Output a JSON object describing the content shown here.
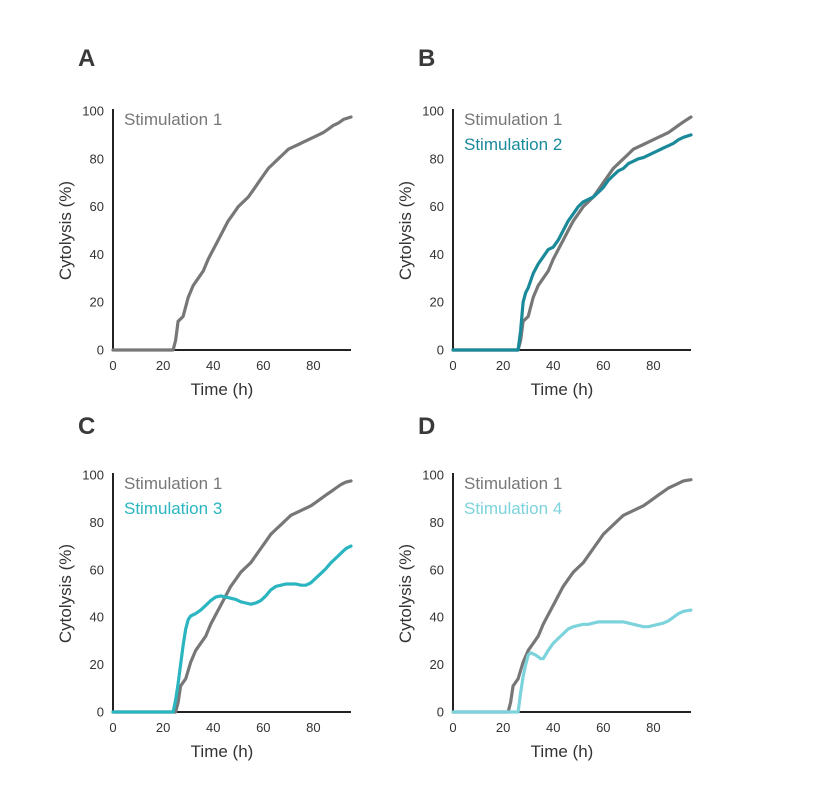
{
  "chart_data": [
    {
      "panel": "A",
      "type": "line",
      "title": "",
      "xlabel": "Time (h)",
      "ylabel": "Cytolysis (%)",
      "xlim": [
        0,
        95
      ],
      "ylim": [
        0,
        100
      ],
      "xticks": [
        0,
        20,
        40,
        60,
        80
      ],
      "yticks": [
        0,
        20,
        40,
        60,
        80,
        100
      ],
      "series": [
        {
          "name": "Stimulation 1",
          "color": "#777777",
          "points": [
            [
              0,
              0
            ],
            [
              24,
              0
            ],
            [
              25,
              4
            ],
            [
              26,
              12
            ],
            [
              28,
              14
            ],
            [
              30,
              22
            ],
            [
              32,
              27
            ],
            [
              34,
              30
            ],
            [
              36,
              33
            ],
            [
              38,
              38
            ],
            [
              40,
              42
            ],
            [
              42,
              46
            ],
            [
              44,
              50
            ],
            [
              46,
              54
            ],
            [
              48,
              57
            ],
            [
              50,
              60
            ],
            [
              52,
              62
            ],
            [
              54,
              64
            ],
            [
              56,
              67
            ],
            [
              58,
              70
            ],
            [
              60,
              73
            ],
            [
              62,
              76
            ],
            [
              64,
              78
            ],
            [
              66,
              80
            ],
            [
              68,
              82
            ],
            [
              70,
              84
            ],
            [
              72,
              85
            ],
            [
              74,
              86
            ],
            [
              76,
              87
            ],
            [
              78,
              88
            ],
            [
              80,
              89
            ],
            [
              82,
              90
            ],
            [
              84,
              91
            ],
            [
              86,
              92.5
            ],
            [
              88,
              94
            ],
            [
              90,
              95
            ],
            [
              92,
              96.5
            ],
            [
              95,
              97.5
            ]
          ]
        }
      ]
    },
    {
      "panel": "B",
      "type": "line",
      "title": "",
      "xlabel": "Time (h)",
      "ylabel": "Cytolysis (%)",
      "xlim": [
        0,
        95
      ],
      "ylim": [
        0,
        100
      ],
      "xticks": [
        0,
        20,
        40,
        60,
        80
      ],
      "yticks": [
        0,
        20,
        40,
        60,
        80,
        100
      ],
      "series": [
        {
          "name": "Stimulation 1",
          "color": "#777777",
          "points": [
            [
              0,
              0
            ],
            [
              26,
              0
            ],
            [
              27,
              4
            ],
            [
              28,
              12
            ],
            [
              30,
              14
            ],
            [
              32,
              22
            ],
            [
              34,
              27
            ],
            [
              36,
              30
            ],
            [
              38,
              33
            ],
            [
              40,
              38
            ],
            [
              42,
              42
            ],
            [
              44,
              46
            ],
            [
              46,
              50
            ],
            [
              48,
              54
            ],
            [
              50,
              57
            ],
            [
              52,
              60
            ],
            [
              54,
              62
            ],
            [
              56,
              64
            ],
            [
              58,
              67
            ],
            [
              60,
              70
            ],
            [
              62,
              73
            ],
            [
              64,
              76
            ],
            [
              66,
              78
            ],
            [
              68,
              80
            ],
            [
              70,
              82
            ],
            [
              72,
              84
            ],
            [
              74,
              85
            ],
            [
              76,
              86
            ],
            [
              78,
              87
            ],
            [
              80,
              88
            ],
            [
              82,
              89
            ],
            [
              84,
              90
            ],
            [
              86,
              91
            ],
            [
              88,
              92.5
            ],
            [
              90,
              94
            ],
            [
              92,
              95.5
            ],
            [
              95,
              97.5
            ]
          ]
        },
        {
          "name": "Stimulation 2",
          "color": "#1a8a9a",
          "points": [
            [
              0,
              0
            ],
            [
              26,
              0
            ],
            [
              27,
              8
            ],
            [
              28,
              20
            ],
            [
              29,
              24
            ],
            [
              30,
              26
            ],
            [
              32,
              32
            ],
            [
              34,
              36
            ],
            [
              36,
              39
            ],
            [
              38,
              42
            ],
            [
              40,
              43
            ],
            [
              42,
              46
            ],
            [
              44,
              50
            ],
            [
              46,
              54
            ],
            [
              48,
              57
            ],
            [
              50,
              60
            ],
            [
              52,
              62
            ],
            [
              54,
              63
            ],
            [
              56,
              64
            ],
            [
              58,
              66
            ],
            [
              60,
              68
            ],
            [
              62,
              71
            ],
            [
              64,
              73
            ],
            [
              66,
              75
            ],
            [
              68,
              76
            ],
            [
              70,
              78
            ],
            [
              72,
              79
            ],
            [
              74,
              80
            ],
            [
              76,
              80.5
            ],
            [
              78,
              81.5
            ],
            [
              80,
              82.5
            ],
            [
              82,
              83.5
            ],
            [
              84,
              84.5
            ],
            [
              86,
              85.5
            ],
            [
              88,
              86.5
            ],
            [
              90,
              88
            ],
            [
              92,
              89
            ],
            [
              95,
              90
            ]
          ]
        }
      ]
    },
    {
      "panel": "C",
      "type": "line",
      "title": "",
      "xlabel": "Time (h)",
      "ylabel": "Cytolysis (%)",
      "xlim": [
        0,
        95
      ],
      "ylim": [
        0,
        100
      ],
      "xticks": [
        0,
        20,
        40,
        60,
        80
      ],
      "yticks": [
        0,
        20,
        40,
        60,
        80,
        100
      ],
      "series": [
        {
          "name": "Stimulation 1",
          "color": "#777777",
          "points": [
            [
              0,
              0
            ],
            [
              25,
              0
            ],
            [
              26,
              4
            ],
            [
              27,
              11
            ],
            [
              29,
              14
            ],
            [
              31,
              21
            ],
            [
              33,
              26
            ],
            [
              35,
              29
            ],
            [
              37,
              32
            ],
            [
              39,
              37
            ],
            [
              41,
              41
            ],
            [
              43,
              45
            ],
            [
              45,
              49
            ],
            [
              47,
              53
            ],
            [
              49,
              56
            ],
            [
              51,
              59
            ],
            [
              53,
              61
            ],
            [
              55,
              63
            ],
            [
              57,
              66
            ],
            [
              59,
              69
            ],
            [
              61,
              72
            ],
            [
              63,
              75
            ],
            [
              65,
              77
            ],
            [
              67,
              79
            ],
            [
              69,
              81
            ],
            [
              71,
              83
            ],
            [
              73,
              84
            ],
            [
              75,
              85
            ],
            [
              77,
              86
            ],
            [
              79,
              87
            ],
            [
              81,
              88.5
            ],
            [
              83,
              90
            ],
            [
              85,
              91.5
            ],
            [
              87,
              93
            ],
            [
              89,
              94.5
            ],
            [
              91,
              96
            ],
            [
              93,
              97
            ],
            [
              95,
              97.5
            ]
          ]
        },
        {
          "name": "Stimulation 3",
          "color": "#2ab5c0",
          "points": [
            [
              0,
              0
            ],
            [
              24,
              0
            ],
            [
              25,
              5
            ],
            [
              26,
              12
            ],
            [
              27,
              20
            ],
            [
              28,
              28
            ],
            [
              29,
              35
            ],
            [
              30,
              39
            ],
            [
              31,
              40.5
            ],
            [
              33,
              41.5
            ],
            [
              35,
              43
            ],
            [
              37,
              45
            ],
            [
              39,
              47
            ],
            [
              41,
              48.5
            ],
            [
              43,
              49
            ],
            [
              45,
              48.5
            ],
            [
              47,
              48
            ],
            [
              49,
              47.5
            ],
            [
              51,
              46.5
            ],
            [
              53,
              46
            ],
            [
              55,
              45.5
            ],
            [
              57,
              46
            ],
            [
              59,
              47
            ],
            [
              61,
              49
            ],
            [
              63,
              51.5
            ],
            [
              65,
              53
            ],
            [
              67,
              53.5
            ],
            [
              69,
              54
            ],
            [
              71,
              54
            ],
            [
              73,
              54
            ],
            [
              75,
              53.5
            ],
            [
              77,
              53.5
            ],
            [
              79,
              54.5
            ],
            [
              81,
              56.5
            ],
            [
              83,
              58.5
            ],
            [
              85,
              60.5
            ],
            [
              87,
              63
            ],
            [
              89,
              65
            ],
            [
              91,
              67
            ],
            [
              93,
              69
            ],
            [
              95,
              70
            ]
          ]
        }
      ]
    },
    {
      "panel": "D",
      "type": "line",
      "title": "",
      "xlabel": "Time (h)",
      "ylabel": "Cytolysis (%)",
      "xlim": [
        0,
        95
      ],
      "ylim": [
        0,
        100
      ],
      "xticks": [
        0,
        20,
        40,
        60,
        80
      ],
      "yticks": [
        0,
        20,
        40,
        60,
        80,
        100
      ],
      "series": [
        {
          "name": "Stimulation 1",
          "color": "#777777",
          "points": [
            [
              0,
              0
            ],
            [
              22,
              0
            ],
            [
              23,
              4
            ],
            [
              24,
              11
            ],
            [
              26,
              14
            ],
            [
              28,
              21
            ],
            [
              30,
              26
            ],
            [
              32,
              29
            ],
            [
              34,
              32
            ],
            [
              36,
              37
            ],
            [
              38,
              41
            ],
            [
              40,
              45
            ],
            [
              42,
              49
            ],
            [
              44,
              53
            ],
            [
              46,
              56
            ],
            [
              48,
              59
            ],
            [
              50,
              61
            ],
            [
              52,
              63
            ],
            [
              54,
              66
            ],
            [
              56,
              69
            ],
            [
              58,
              72
            ],
            [
              60,
              75
            ],
            [
              62,
              77
            ],
            [
              64,
              79
            ],
            [
              66,
              81
            ],
            [
              68,
              83
            ],
            [
              70,
              84
            ],
            [
              72,
              85
            ],
            [
              74,
              86
            ],
            [
              76,
              87
            ],
            [
              78,
              88.5
            ],
            [
              80,
              90
            ],
            [
              82,
              91.5
            ],
            [
              84,
              93
            ],
            [
              86,
              94.5
            ],
            [
              88,
              95.5
            ],
            [
              90,
              96.5
            ],
            [
              92,
              97.5
            ],
            [
              95,
              98
            ]
          ]
        },
        {
          "name": "Stimulation 4",
          "color": "#7dd3dc",
          "points": [
            [
              0,
              0
            ],
            [
              26,
              0
            ],
            [
              27,
              8
            ],
            [
              28,
              15
            ],
            [
              29,
              20
            ],
            [
              30,
              24
            ],
            [
              31,
              25
            ],
            [
              33,
              24
            ],
            [
              35,
              22.5
            ],
            [
              36,
              22.5
            ],
            [
              38,
              26
            ],
            [
              40,
              29
            ],
            [
              42,
              31
            ],
            [
              44,
              33
            ],
            [
              46,
              35
            ],
            [
              48,
              36
            ],
            [
              50,
              36.5
            ],
            [
              52,
              37
            ],
            [
              54,
              37
            ],
            [
              56,
              37.5
            ],
            [
              58,
              38
            ],
            [
              60,
              38
            ],
            [
              62,
              38
            ],
            [
              64,
              38
            ],
            [
              66,
              38
            ],
            [
              68,
              38
            ],
            [
              70,
              37.5
            ],
            [
              72,
              37
            ],
            [
              74,
              36.5
            ],
            [
              76,
              36
            ],
            [
              78,
              36
            ],
            [
              80,
              36.5
            ],
            [
              82,
              37
            ],
            [
              84,
              37.5
            ],
            [
              86,
              38.5
            ],
            [
              88,
              40
            ],
            [
              90,
              41.5
            ],
            [
              92,
              42.5
            ],
            [
              95,
              43
            ]
          ]
        }
      ]
    }
  ]
}
